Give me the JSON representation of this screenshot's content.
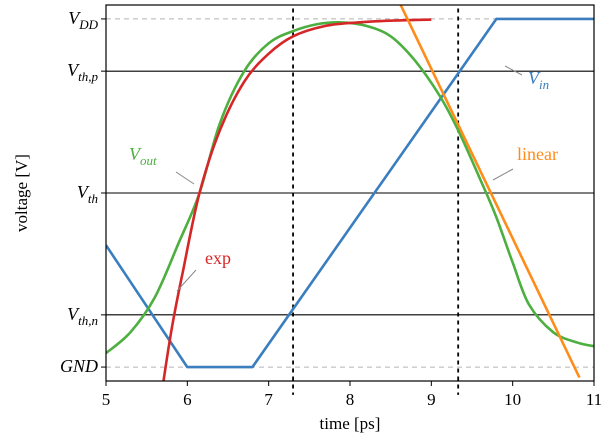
{
  "chart_data": {
    "type": "line",
    "xlabel": "time [ps]",
    "ylabel": "voltage [V]",
    "xlim": [
      5,
      11
    ],
    "ylim": [
      -0.04,
      1.04
    ],
    "x_ticks": [
      5,
      6,
      7,
      8,
      9,
      10,
      11
    ],
    "reference_levels": [
      {
        "label": "GND",
        "sub": "",
        "value": 0.0,
        "style": "dashed"
      },
      {
        "label": "V",
        "sub": "th,n",
        "value": 0.15,
        "style": "solid"
      },
      {
        "label": "V",
        "sub": "th",
        "value": 0.5,
        "style": "solid"
      },
      {
        "label": "V",
        "sub": "th,p",
        "value": 0.85,
        "style": "solid"
      },
      {
        "label": "V",
        "sub": "DD",
        "value": 1.0,
        "style": "dashed"
      }
    ],
    "vertical_markers": [
      {
        "x": 7.3,
        "y_range": [
          -0.08,
          1.03
        ],
        "style": "dotted"
      },
      {
        "x": 9.33,
        "y_range": [
          -0.08,
          1.03
        ],
        "style": "dotted"
      }
    ],
    "series": [
      {
        "name": "V",
        "sub": "in",
        "color": "#3a7ebf",
        "x": [
          5.0,
          6.0,
          6.8,
          9.8,
          11.0
        ],
        "y": [
          0.35,
          0.0,
          0.0,
          1.0,
          1.0
        ]
      },
      {
        "name": "V",
        "sub": "out",
        "color": "#4caf3f",
        "x": [
          5.0,
          5.3,
          5.6,
          5.9,
          6.15,
          6.4,
          6.7,
          7.0,
          7.3,
          7.6,
          7.9,
          8.2,
          8.5,
          8.8,
          9.1,
          9.33,
          9.6,
          9.8,
          10.0,
          10.2,
          10.5,
          10.8,
          11.0
        ],
        "y": [
          0.04,
          0.1,
          0.2,
          0.36,
          0.5,
          0.7,
          0.85,
          0.93,
          0.965,
          0.985,
          0.99,
          0.98,
          0.95,
          0.88,
          0.78,
          0.68,
          0.54,
          0.43,
          0.3,
          0.18,
          0.1,
          0.07,
          0.06
        ]
      },
      {
        "name": "exp",
        "sub": "",
        "color": "#d62728",
        "x": [
          5.65,
          5.8,
          5.95,
          6.15,
          6.4,
          6.7,
          7.0,
          7.3,
          7.7,
          8.1,
          8.5,
          9.0
        ],
        "y": [
          -0.13,
          0.1,
          0.28,
          0.5,
          0.68,
          0.82,
          0.9,
          0.95,
          0.98,
          0.99,
          0.995,
          0.998
        ]
      },
      {
        "name": "linear",
        "sub": "",
        "color": "#ff8c1a",
        "x": [
          8.5,
          10.82
        ],
        "y": [
          1.1,
          -0.03
        ]
      }
    ],
    "annotations": [
      {
        "text": "exp",
        "color": "#d62728",
        "italic": false
      },
      {
        "text": "linear",
        "color": "#ff8c1a",
        "italic": false
      }
    ]
  }
}
